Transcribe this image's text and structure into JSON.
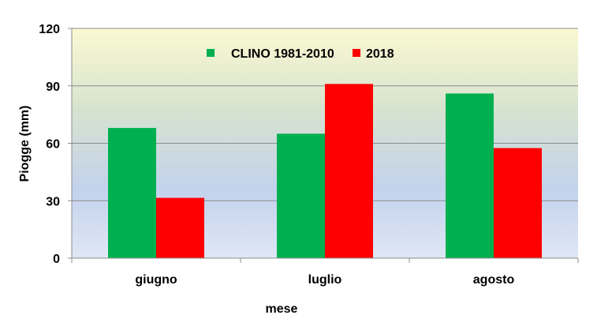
{
  "chart_data": {
    "type": "bar",
    "categories": [
      "giugno",
      "luglio",
      "agosto"
    ],
    "series": [
      {
        "name": "CLINO 1981-2010",
        "values": [
          68,
          65,
          86
        ],
        "color": "#00b050"
      },
      {
        "name": "2018",
        "values": [
          31.5,
          91,
          57.5
        ],
        "color": "#ff0000"
      }
    ],
    "xlabel": "mese",
    "ylabel": "Piogge (mm)",
    "ylim": [
      0,
      120
    ],
    "yticks": [
      0,
      30,
      60,
      90,
      120
    ],
    "grid": true,
    "legend_position": "top"
  }
}
